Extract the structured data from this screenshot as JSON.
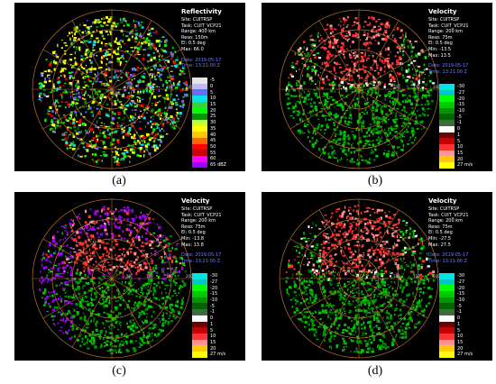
{
  "panels": [
    {
      "id": "a",
      "caption": "(a)",
      "title": "Reflectivity",
      "meta": [
        "Site: CUITRSP",
        "Task: CUIT_VCP21",
        "Range: 400 km",
        "Reso: 150m",
        "El: 0.5 deg",
        "Max: 66.0"
      ],
      "date": "Date: 2019-05-17",
      "time": "Time: 13:21:00 Z",
      "rings": [
        "100",
        "200",
        "300",
        "400"
      ],
      "legend": [
        {
          "label": "-5",
          "color": "#e6e6e6"
        },
        {
          "label": "0",
          "color": "#b9b9ff"
        },
        {
          "label": "5",
          "color": "#6a6aff"
        },
        {
          "label": "10",
          "color": "#00e6e6"
        },
        {
          "label": "15",
          "color": "#3ad23a"
        },
        {
          "label": "20",
          "color": "#00ff00"
        },
        {
          "label": "25",
          "color": "#009600"
        },
        {
          "label": "30",
          "color": "#c8ff32"
        },
        {
          "label": "35",
          "color": "#ffff00"
        },
        {
          "label": "40",
          "color": "#ffc800"
        },
        {
          "label": "45",
          "color": "#ff6400"
        },
        {
          "label": "50",
          "color": "#ff0000"
        },
        {
          "label": "55",
          "color": "#c80000"
        },
        {
          "label": "60",
          "color": "#ff00ff"
        },
        {
          "label": "65 dBZ",
          "color": "#a000ff"
        }
      ]
    },
    {
      "id": "b",
      "caption": "(b)",
      "title": "Velocity",
      "meta": [
        "Site: CUITRSP",
        "Task: CUIT_VCP21",
        "Range: 200 km",
        "Reso: 75m",
        "El: 0.5 deg",
        "Min: -13.5",
        "Max: 13.5"
      ],
      "date": "Date: 2019-05-17",
      "time": "Time: 13:21:00 Z",
      "rings": [
        "50",
        "100",
        "150",
        "200"
      ],
      "legend": [
        {
          "label": "-30",
          "color": "#00e6e6"
        },
        {
          "label": "-27",
          "color": "#00c8c8"
        },
        {
          "label": "-20",
          "color": "#00ff00"
        },
        {
          "label": "-15",
          "color": "#00c800"
        },
        {
          "label": "-10",
          "color": "#009600"
        },
        {
          "label": "-5",
          "color": "#006400"
        },
        {
          "label": "-1",
          "color": "#3c6e3c"
        },
        {
          "label": "0",
          "color": "#ffffff"
        },
        {
          "label": "1",
          "color": "#6e0000"
        },
        {
          "label": "5",
          "color": "#c80000"
        },
        {
          "label": "10",
          "color": "#ff3232"
        },
        {
          "label": "15",
          "color": "#ff9696"
        },
        {
          "label": "20",
          "color": "#ffc800"
        },
        {
          "label": "27 m/s",
          "color": "#ffff00"
        }
      ]
    },
    {
      "id": "c",
      "caption": "(c)",
      "title": "Velocity",
      "meta": [
        "Site: CUITRSP",
        "Task: CUIT_VCP21",
        "Range: 200 km",
        "Reso: 75m",
        "El: 0.5 deg",
        "Min: -13.8",
        "Max: 13.8"
      ],
      "date": "Date: 2019-05-17",
      "time": "Time: 13:21:00 Z",
      "rings": [
        "50",
        "100",
        "150",
        "200"
      ],
      "legend": [
        {
          "label": "-30",
          "color": "#00e6e6"
        },
        {
          "label": "-27",
          "color": "#00c8c8"
        },
        {
          "label": "-20",
          "color": "#00ff00"
        },
        {
          "label": "-15",
          "color": "#00c800"
        },
        {
          "label": "-10",
          "color": "#009600"
        },
        {
          "label": "-5",
          "color": "#006400"
        },
        {
          "label": "-1",
          "color": "#3c6e3c"
        },
        {
          "label": "0",
          "color": "#ffffff"
        },
        {
          "label": "1",
          "color": "#6e0000"
        },
        {
          "label": "5",
          "color": "#c80000"
        },
        {
          "label": "10",
          "color": "#ff3232"
        },
        {
          "label": "15",
          "color": "#ff9696"
        },
        {
          "label": "20",
          "color": "#ffc800"
        },
        {
          "label": "27 m/s",
          "color": "#ffff00"
        }
      ]
    },
    {
      "id": "d",
      "caption": "(d)",
      "title": "Velocity",
      "meta": [
        "Site: CUITRSP",
        "Task: CUIT_VCP21",
        "Range: 200 km",
        "Reso: 75m",
        "El: 0.5 deg",
        "Min: -27.5",
        "Max: 27.5"
      ],
      "date": "Date: 2019-05-17",
      "time": "Time: 13:21:00 Z",
      "rings": [
        "50",
        "100",
        "150",
        "200"
      ],
      "legend": [
        {
          "label": "-30",
          "color": "#00e6e6"
        },
        {
          "label": "-27",
          "color": "#00c8c8"
        },
        {
          "label": "-20",
          "color": "#00ff00"
        },
        {
          "label": "-15",
          "color": "#00c800"
        },
        {
          "label": "-10",
          "color": "#009600"
        },
        {
          "label": "-5",
          "color": "#006400"
        },
        {
          "label": "-1",
          "color": "#3c6e3c"
        },
        {
          "label": "0",
          "color": "#ffffff"
        },
        {
          "label": "1",
          "color": "#6e0000"
        },
        {
          "label": "5",
          "color": "#c80000"
        },
        {
          "label": "10",
          "color": "#ff3232"
        },
        {
          "label": "15",
          "color": "#ff9696"
        },
        {
          "label": "20",
          "color": "#ffc800"
        },
        {
          "label": "27 m/s",
          "color": "#ffff00"
        }
      ]
    }
  ],
  "colors": {
    "ring": "#b87333",
    "background": "#000000",
    "date_text": "#6f7cff"
  }
}
